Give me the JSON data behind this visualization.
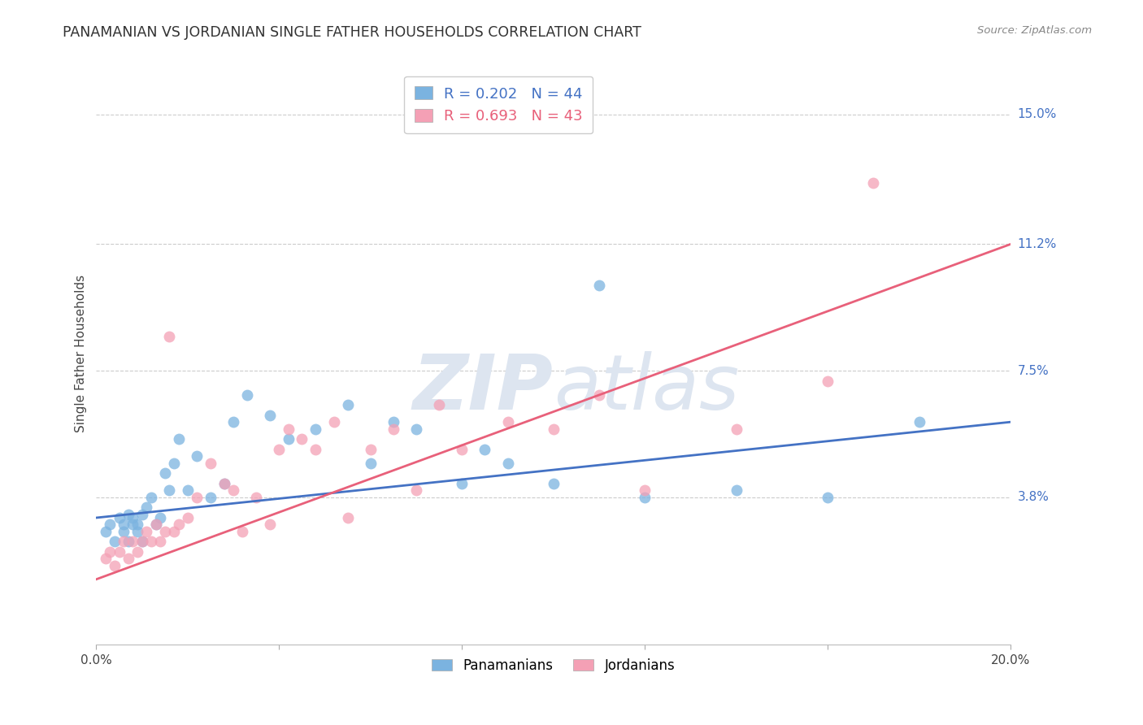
{
  "title": "PANAMANIAN VS JORDANIAN SINGLE FATHER HOUSEHOLDS CORRELATION CHART",
  "source": "Source: ZipAtlas.com",
  "ylabel": "Single Father Households",
  "xlim": [
    0.0,
    0.2
  ],
  "ylim": [
    -0.005,
    0.165
  ],
  "yticks": [
    0.038,
    0.075,
    0.112,
    0.15
  ],
  "ytick_labels": [
    "3.8%",
    "7.5%",
    "11.2%",
    "15.0%"
  ],
  "xticks": [
    0.0,
    0.04,
    0.08,
    0.12,
    0.16,
    0.2
  ],
  "pan_R": 0.202,
  "pan_N": 44,
  "jor_R": 0.693,
  "jor_N": 43,
  "pan_color": "#7bb3e0",
  "jor_color": "#f4a0b5",
  "pan_line_color": "#4472c4",
  "jor_line_color": "#e8607a",
  "watermark_color": "#dde5f0",
  "pan_x": [
    0.002,
    0.003,
    0.004,
    0.005,
    0.006,
    0.006,
    0.007,
    0.007,
    0.008,
    0.008,
    0.009,
    0.009,
    0.01,
    0.01,
    0.011,
    0.012,
    0.013,
    0.014,
    0.015,
    0.016,
    0.017,
    0.018,
    0.02,
    0.022,
    0.025,
    0.028,
    0.03,
    0.033,
    0.038,
    0.042,
    0.048,
    0.055,
    0.06,
    0.065,
    0.07,
    0.08,
    0.085,
    0.09,
    0.1,
    0.11,
    0.12,
    0.14,
    0.16,
    0.18
  ],
  "pan_y": [
    0.028,
    0.03,
    0.025,
    0.032,
    0.028,
    0.03,
    0.025,
    0.033,
    0.03,
    0.032,
    0.028,
    0.03,
    0.025,
    0.033,
    0.035,
    0.038,
    0.03,
    0.032,
    0.045,
    0.04,
    0.048,
    0.055,
    0.04,
    0.05,
    0.038,
    0.042,
    0.06,
    0.068,
    0.062,
    0.055,
    0.058,
    0.065,
    0.048,
    0.06,
    0.058,
    0.042,
    0.052,
    0.048,
    0.042,
    0.1,
    0.038,
    0.04,
    0.038,
    0.06
  ],
  "jor_x": [
    0.002,
    0.003,
    0.004,
    0.005,
    0.006,
    0.007,
    0.008,
    0.009,
    0.01,
    0.011,
    0.012,
    0.013,
    0.014,
    0.015,
    0.016,
    0.017,
    0.018,
    0.02,
    0.022,
    0.025,
    0.028,
    0.03,
    0.032,
    0.035,
    0.038,
    0.04,
    0.042,
    0.045,
    0.048,
    0.052,
    0.055,
    0.06,
    0.065,
    0.07,
    0.075,
    0.08,
    0.09,
    0.1,
    0.11,
    0.12,
    0.14,
    0.16,
    0.17
  ],
  "jor_y": [
    0.02,
    0.022,
    0.018,
    0.022,
    0.025,
    0.02,
    0.025,
    0.022,
    0.025,
    0.028,
    0.025,
    0.03,
    0.025,
    0.028,
    0.085,
    0.028,
    0.03,
    0.032,
    0.038,
    0.048,
    0.042,
    0.04,
    0.028,
    0.038,
    0.03,
    0.052,
    0.058,
    0.055,
    0.052,
    0.06,
    0.032,
    0.052,
    0.058,
    0.04,
    0.065,
    0.052,
    0.06,
    0.058,
    0.068,
    0.04,
    0.058,
    0.072,
    0.13
  ],
  "pan_line_start_y": 0.032,
  "pan_line_end_y": 0.06,
  "jor_line_start_y": 0.014,
  "jor_line_end_y": 0.112
}
